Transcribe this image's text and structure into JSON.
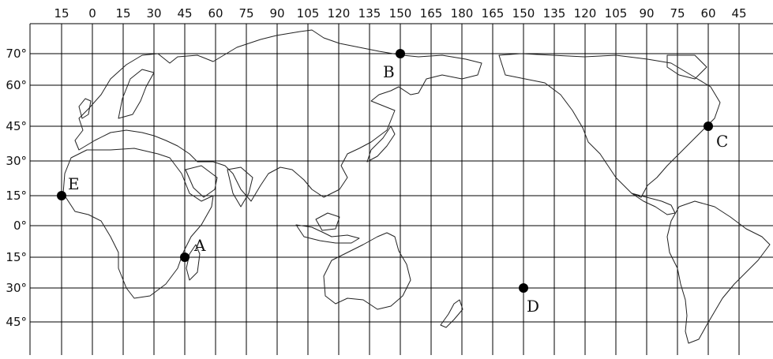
{
  "map": {
    "longitude_labels": [
      "15",
      "0",
      "15",
      "30",
      "45",
      "60",
      "75",
      "90",
      "105",
      "120",
      "135",
      "150",
      "165",
      "180",
      "165",
      "150",
      "135",
      "120",
      "105",
      "90",
      "75",
      "60",
      "45"
    ],
    "latitude_labels": [
      "70°",
      "60°",
      "45°",
      "30°",
      "15°",
      "0°",
      "15°",
      "30°",
      "45°"
    ],
    "points": [
      {
        "id": "A",
        "label": "A",
        "lon_label": "45",
        "lat_label": "15°",
        "hemisphere": "S"
      },
      {
        "id": "B",
        "label": "B",
        "lon_label": "150",
        "lat_label": "70°",
        "hemisphere": "N"
      },
      {
        "id": "C",
        "label": "C",
        "lon_label": "60",
        "lat_label": "45°",
        "hemisphere": "N"
      },
      {
        "id": "D",
        "label": "D",
        "lon_label": "150",
        "lat_label": "30°",
        "hemisphere": "S"
      },
      {
        "id": "E",
        "label": "E",
        "lon_label": "15",
        "lat_label": "15°",
        "hemisphere": "N"
      }
    ],
    "colors": {
      "ink": "#000000",
      "background": "#ffffff"
    }
  }
}
